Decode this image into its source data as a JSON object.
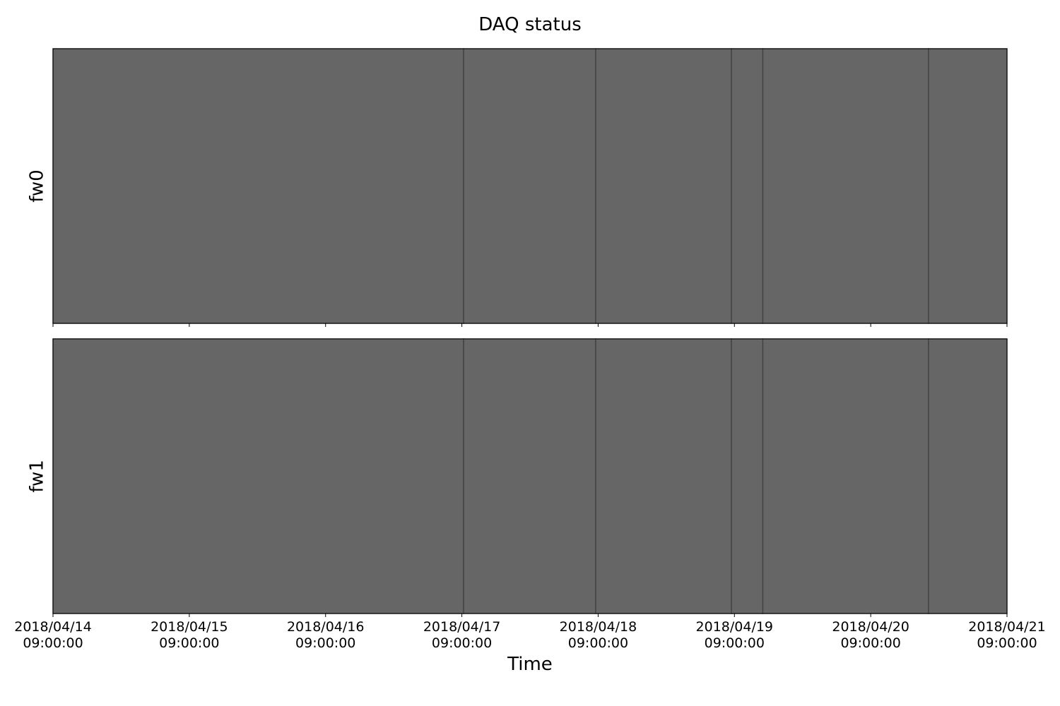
{
  "chart_data": [
    {
      "type": "timeline",
      "title": "DAQ status",
      "y_label": "fw0",
      "color": "#666666",
      "x": [
        "2018-04-14T09:00:00",
        "2018-04-17T09:18:00",
        "2018-04-18T08:34:00",
        "2018-04-19T08:28:00",
        "2018-04-19T14:00:00",
        "2018-04-20T19:11:00",
        "2018-04-21T09:00:00"
      ],
      "xlim": [
        "2018-04-14T09:00:00",
        "2018-04-21T09:00:00"
      ]
    },
    {
      "type": "timeline",
      "x_label": "Time",
      "y_label": "fw1",
      "color": "#666666",
      "x": [
        "2018-04-14T09:00:00",
        "2018-04-17T09:18:00",
        "2018-04-18T08:34:00",
        "2018-04-19T08:28:00",
        "2018-04-19T14:00:00",
        "2018-04-20T19:11:00",
        "2018-04-21T09:00:00"
      ],
      "xlim": [
        "2018-04-14T09:00:00",
        "2018-04-21T09:00:00"
      ],
      "xticks": [
        {
          "value": "2018-04-14T09:00:00",
          "label": "2018/04/14 09:00:00"
        },
        {
          "value": "2018-04-15T09:00:00",
          "label": "2018/04/15 09:00:00"
        },
        {
          "value": "2018-04-16T09:00:00",
          "label": "2018/04/16 09:00:00"
        },
        {
          "value": "2018-04-17T09:00:00",
          "label": "2018/04/17 09:00:00"
        },
        {
          "value": "2018-04-18T09:00:00",
          "label": "2018/04/18 09:00:00"
        },
        {
          "value": "2018-04-19T09:00:00",
          "label": "2018/04/19 09:00:00"
        },
        {
          "value": "2018-04-20T09:00:00",
          "label": "2018/04/20 09:00:00"
        },
        {
          "value": "2018-04-21T09:00:00",
          "label": "2018/04/21 09:00:00"
        }
      ]
    }
  ]
}
